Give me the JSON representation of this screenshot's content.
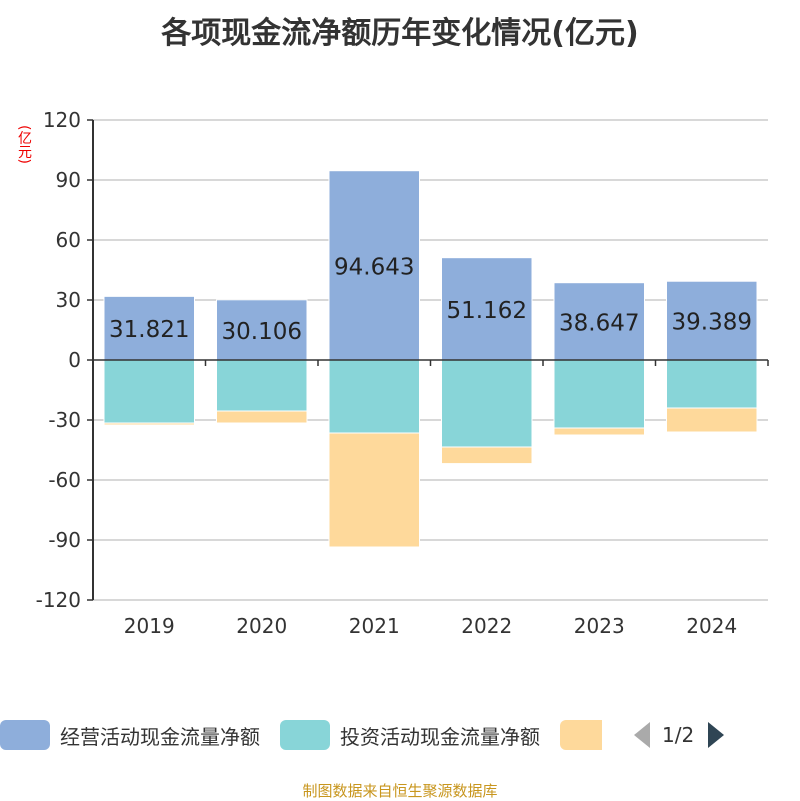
{
  "chart_data": {
    "type": "bar",
    "stacked": true,
    "title": "各项现金流净额历年变化情况(亿元)",
    "ylabel": "(亿元)",
    "categories": [
      "2019",
      "2020",
      "2021",
      "2022",
      "2023",
      "2024"
    ],
    "ylim": [
      -120,
      120
    ],
    "yticks": [
      120,
      90,
      60,
      30,
      0,
      -30,
      -60,
      -90,
      -120
    ],
    "grid": true,
    "legend_position": "bottom",
    "series": [
      {
        "name": "经营活动现金流量净额",
        "color": "#8eaedb",
        "values": [
          31.821,
          30.106,
          94.643,
          51.162,
          38.647,
          39.389
        ],
        "labels": [
          "31.821",
          "30.106",
          "94.643",
          "51.162",
          "38.647",
          "39.389"
        ]
      },
      {
        "name": "投资活动现金流量净额",
        "color": "#88d5d8",
        "values": [
          -31.5,
          -25.5,
          -36.5,
          -43.5,
          -34,
          -24
        ]
      },
      {
        "name": "",
        "color": "#fed99b",
        "values": [
          -1,
          -6,
          -57,
          -8.3,
          -3.5,
          -12
        ]
      }
    ]
  },
  "legend": {
    "page": "1/2"
  },
  "source": "制图数据来自恒生聚源数据库"
}
